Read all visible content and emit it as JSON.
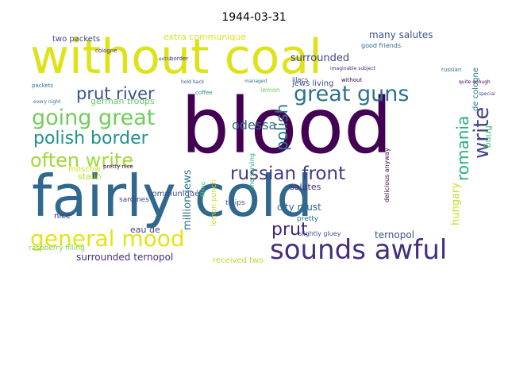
{
  "title": "1944-03-31",
  "palette": {
    "purple": "#440154",
    "indigo": "#3b528b",
    "teal": "#21918c",
    "green": "#5ec962",
    "yellow": "#dde318",
    "lime": "#b5de2b"
  },
  "words": [
    {
      "text": "blood",
      "color": "#440154"
    },
    {
      "text": "fairly cold",
      "color": "#31688e"
    },
    {
      "text": "without coal",
      "color": "#dde318"
    },
    {
      "text": "sounds awful",
      "color": "#472d7b"
    },
    {
      "text": "general mood",
      "color": "#e2e418"
    },
    {
      "text": "going great",
      "color": "#6ece58"
    },
    {
      "text": "great guns",
      "color": "#2c728e"
    },
    {
      "text": "polish border",
      "color": "#21918c"
    },
    {
      "text": "often write",
      "color": "#a0da39"
    },
    {
      "text": "prut river",
      "color": "#3b528b"
    },
    {
      "text": "russian front",
      "color": "#443983"
    },
    {
      "text": "write",
      "color": "#414487"
    },
    {
      "text": "romania",
      "color": "#28ae80"
    },
    {
      "text": "polish",
      "color": "#2a788e"
    },
    {
      "text": "prut",
      "color": "#482475"
    },
    {
      "text": "odessa",
      "color": "#31688e"
    },
    {
      "text": "hungary",
      "color": "#c8e020"
    },
    {
      "text": "surrounded ternopol",
      "color": "#472d7b"
    },
    {
      "text": "million jews",
      "color": "#2c728e"
    },
    {
      "text": "ternopol",
      "color": "#3b528b"
    },
    {
      "text": "german troops",
      "color": "#5ec962"
    },
    {
      "text": "surrounded",
      "color": "#414487"
    },
    {
      "text": "many salutes",
      "color": "#3b528b"
    },
    {
      "text": "extra communiqué",
      "color": "#dde318"
    },
    {
      "text": "two packets",
      "color": "#414487"
    },
    {
      "text": "jews living",
      "color": "#3e4a89"
    },
    {
      "text": "stalin",
      "color": "#b5de2b"
    },
    {
      "text": "communiqué",
      "color": "#3b528b"
    },
    {
      "text": "salutes",
      "color": "#482878"
    },
    {
      "text": "city must",
      "color": "#31688e"
    },
    {
      "text": "eau de",
      "color": "#414487"
    },
    {
      "text": "received two",
      "color": "#b5de2b"
    },
    {
      "text": "moscow",
      "color": "#d0e11c"
    },
    {
      "text": "firing",
      "color": "#3fbc73"
    },
    {
      "text": "de cologne",
      "color": "#2a788e"
    },
    {
      "text": "sardines",
      "color": "#414487"
    },
    {
      "text": "raspberry filling",
      "color": "#7ad151"
    },
    {
      "text": "nice",
      "color": "#472d7b"
    },
    {
      "text": "lemon punch",
      "color": "#c0df25"
    },
    {
      "text": "tulips",
      "color": "#3b528b"
    },
    {
      "text": "pretty",
      "color": "#2a788e"
    },
    {
      "text": "one serving",
      "color": "#27ad81"
    },
    {
      "text": "delicious anyway",
      "color": "#440154"
    },
    {
      "text": "lilacs",
      "color": "#3b528b"
    },
    {
      "text": "good friends",
      "color": "#31688e"
    },
    {
      "text": "packets",
      "color": "#2a788e"
    },
    {
      "text": "pretty nice",
      "color": "#440154"
    },
    {
      "text": "russian",
      "color": "#31688e"
    },
    {
      "text": "lemon",
      "color": "#6ece58"
    },
    {
      "text": "coffee",
      "color": "#21918c"
    },
    {
      "text": "filling",
      "color": "#5ec962"
    },
    {
      "text": "slightly gluey",
      "color": "#3b528b"
    },
    {
      "text": "without",
      "color": "#440154"
    },
    {
      "text": "cologne",
      "color": "#482878"
    },
    {
      "text": "every night",
      "color": "#31688e"
    },
    {
      "text": "hold back",
      "color": "#3b528b"
    },
    {
      "text": "imaginable subject",
      "color": "#482878"
    },
    {
      "text": "managed",
      "color": "#31688e"
    },
    {
      "text": "special",
      "color": "#414487"
    },
    {
      "text": "extra",
      "color": "#3e4a89"
    },
    {
      "text": "border",
      "color": "#472d7b"
    },
    {
      "text": "quite enough",
      "color": "#440154"
    }
  ]
}
